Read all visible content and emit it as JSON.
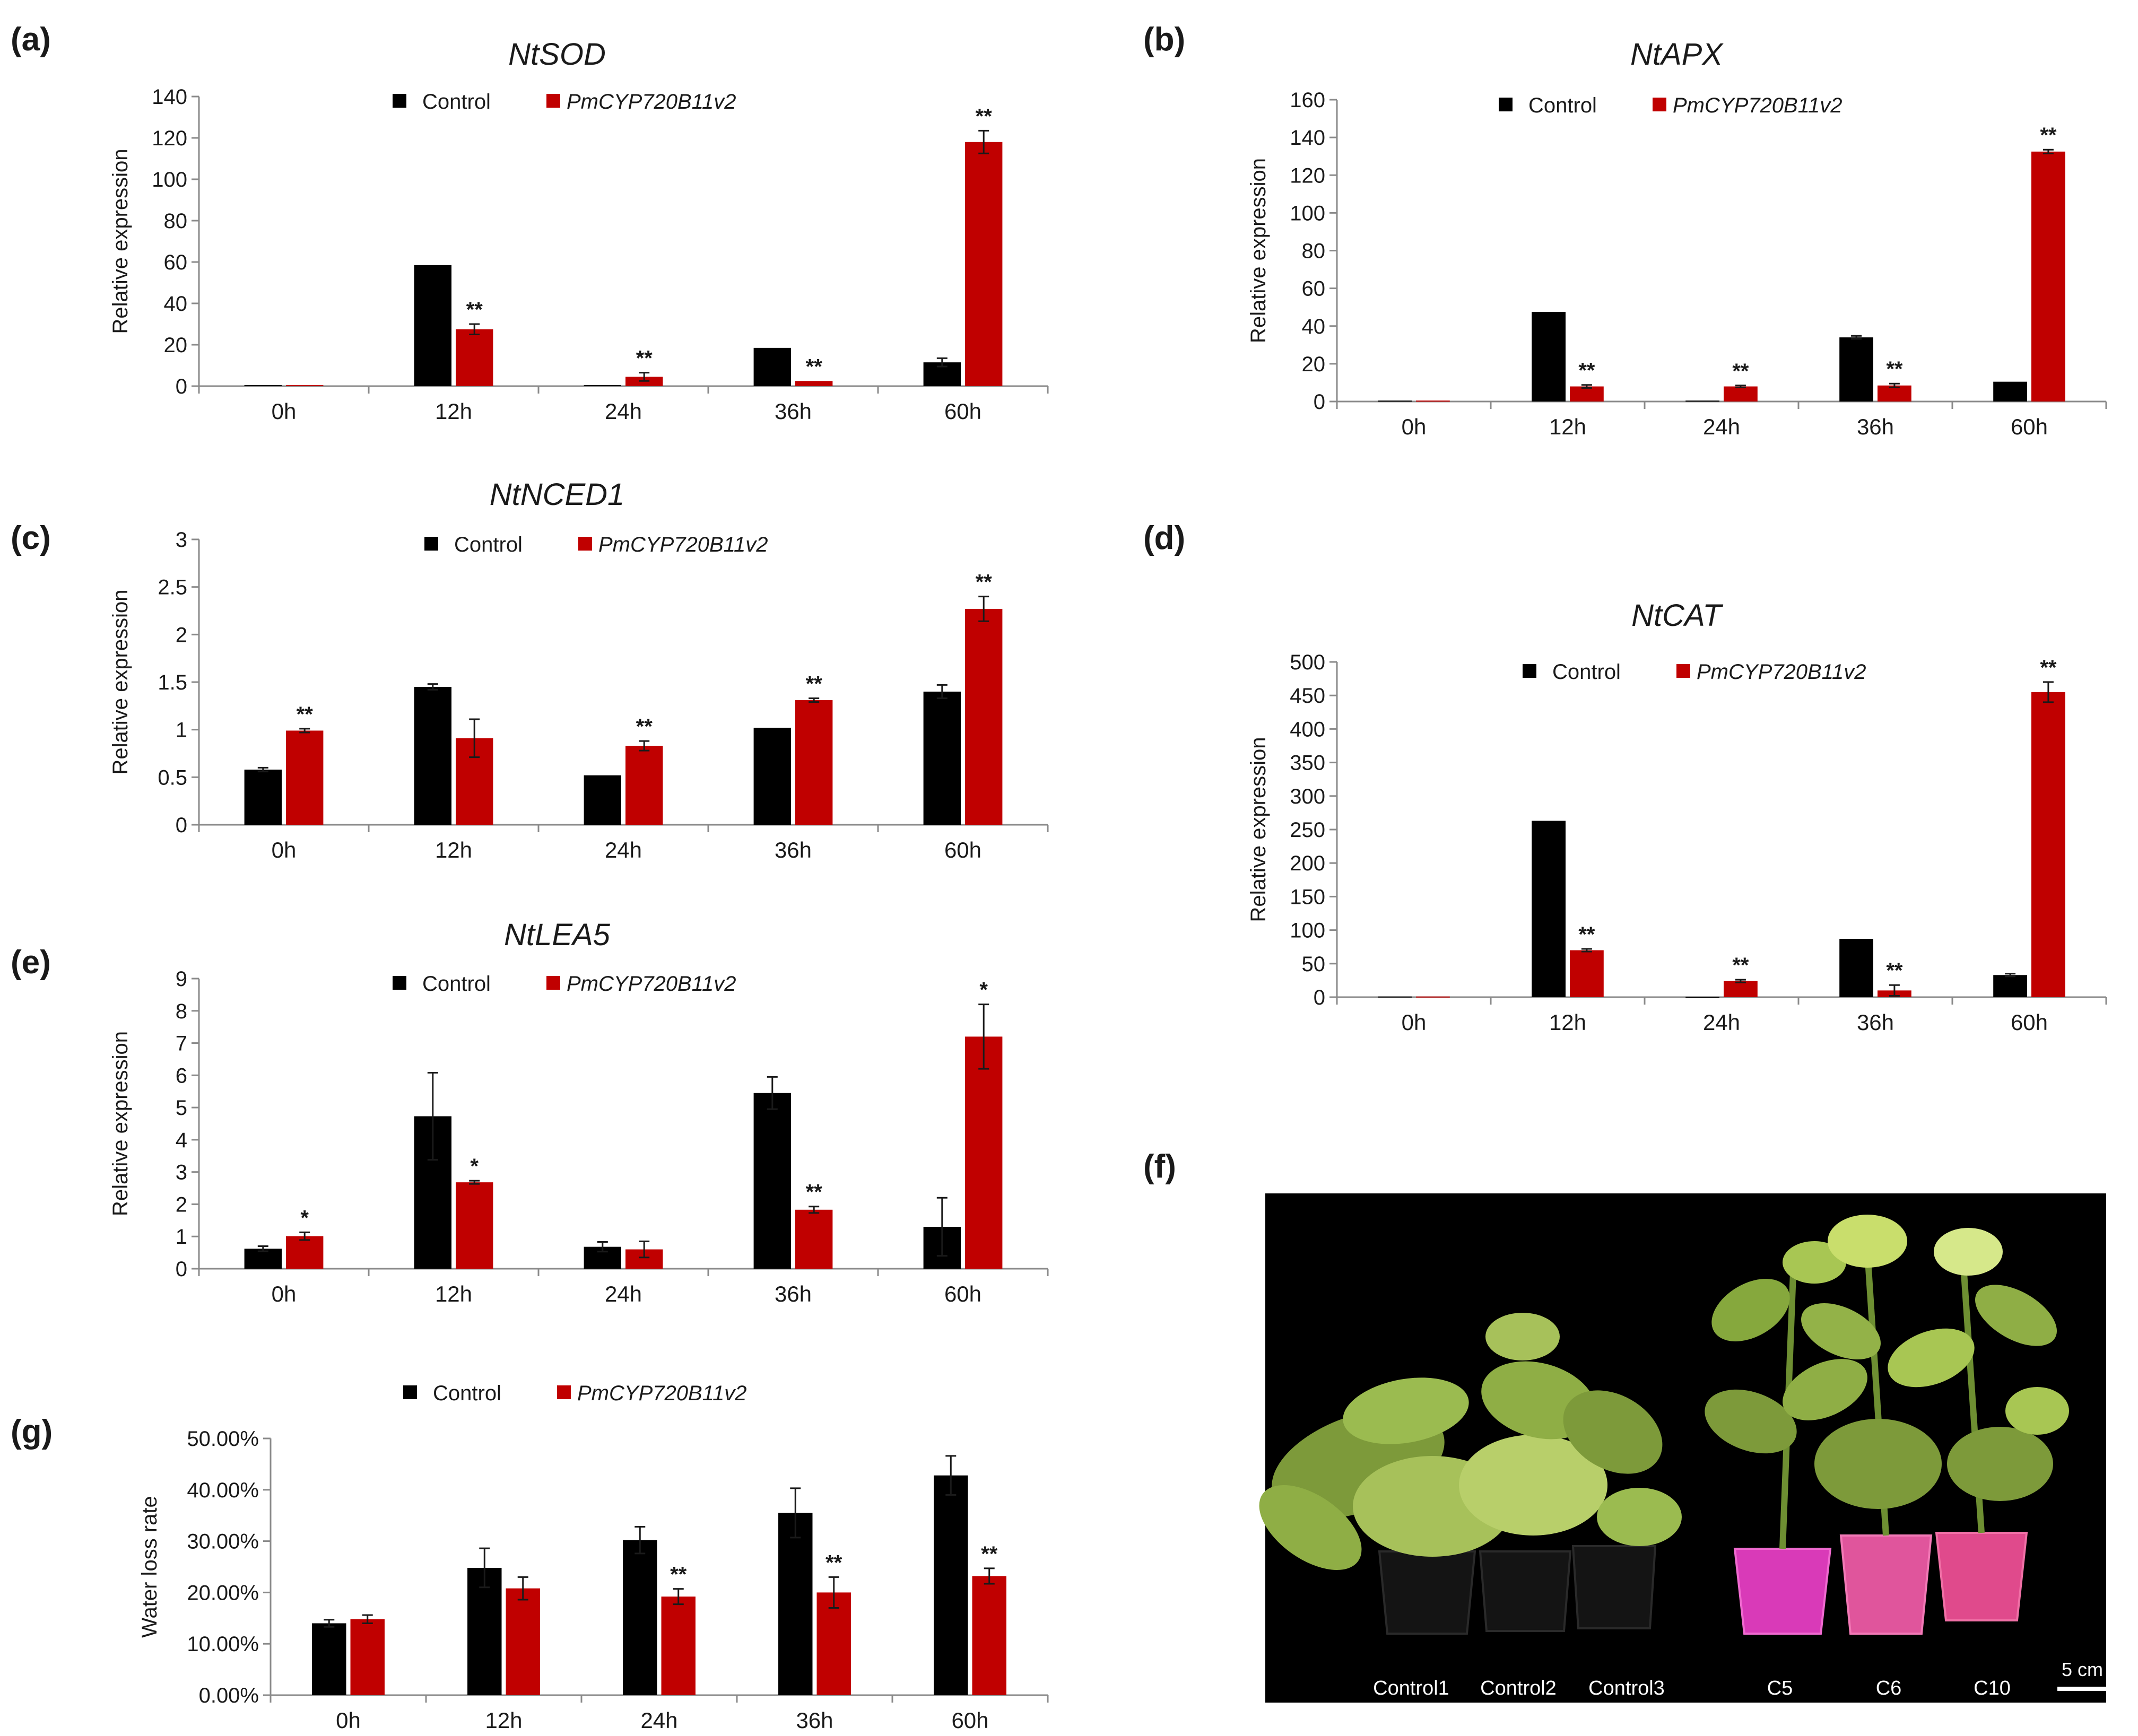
{
  "colors": {
    "control": "#000000",
    "transgenic": "#c00000",
    "axis": "#8a8a8a",
    "photo_bg": "#000000"
  },
  "legend": {
    "control": "Control",
    "transgenic": "PmCYP720B11v2"
  },
  "panel_letters": {
    "a": "(a)",
    "b": "(b)",
    "c": "(c)",
    "d": "(d)",
    "e": "(e)",
    "f": "(f)",
    "g": "(g)"
  },
  "chart_data": [
    {
      "id": "a",
      "type": "bar",
      "title": "NtSOD",
      "ylabel": "Relative expression",
      "xlabel": "",
      "categories": [
        "0h",
        "12h",
        "24h",
        "36h",
        "60h"
      ],
      "ylim": [
        0,
        140
      ],
      "yticks": [
        "0",
        "20",
        "40",
        "60",
        "80",
        "100",
        "120",
        "140"
      ],
      "series": [
        {
          "name": "Control",
          "values": [
            0.5,
            58.5,
            0.5,
            18.5,
            11.5
          ],
          "errors": [
            0,
            0,
            0,
            0,
            2
          ]
        },
        {
          "name": "PmCYP720B11v2",
          "values": [
            0.5,
            27.5,
            4.5,
            2.5,
            118
          ],
          "errors": [
            0,
            2.5,
            2,
            0,
            5.5
          ]
        }
      ],
      "significance": [
        "",
        "**",
        "**",
        "**",
        "**"
      ]
    },
    {
      "id": "b",
      "type": "bar",
      "title": "NtAPX",
      "ylabel": "Relative expression",
      "xlabel": "",
      "categories": [
        "0h",
        "12h",
        "24h",
        "36h",
        "60h"
      ],
      "ylim": [
        0,
        160
      ],
      "yticks": [
        "0",
        "20",
        "40",
        "60",
        "80",
        "100",
        "120",
        "140",
        "160"
      ],
      "series": [
        {
          "name": "Control",
          "values": [
            0.5,
            47.5,
            0.5,
            34,
            10.5
          ],
          "errors": [
            0,
            0,
            0,
            0.8,
            0
          ]
        },
        {
          "name": "PmCYP720B11v2",
          "values": [
            0.5,
            8,
            8,
            8.5,
            132.5
          ],
          "errors": [
            0,
            0.8,
            0.5,
            1,
            1
          ]
        }
      ],
      "significance": [
        "",
        "**",
        "**",
        "**",
        "**"
      ]
    },
    {
      "id": "c",
      "type": "bar",
      "title": "NtNCED1",
      "ylabel": "Relative expression",
      "xlabel": "",
      "categories": [
        "0h",
        "12h",
        "24h",
        "36h",
        "60h"
      ],
      "ylim": [
        0,
        3
      ],
      "yticks": [
        "0",
        "0.5",
        "1",
        "1.5",
        "2",
        "2.5",
        "3"
      ],
      "series": [
        {
          "name": "Control",
          "values": [
            0.58,
            1.45,
            0.52,
            1.02,
            1.4
          ],
          "errors": [
            0.02,
            0.03,
            0,
            0,
            0.07
          ]
        },
        {
          "name": "PmCYP720B11v2",
          "values": [
            0.99,
            0.91,
            0.83,
            1.31,
            2.27
          ],
          "errors": [
            0.02,
            0.2,
            0.05,
            0.02,
            0.13
          ]
        }
      ],
      "significance": [
        "**",
        "",
        "**",
        "**",
        "**"
      ]
    },
    {
      "id": "d",
      "type": "bar",
      "title": "NtCAT",
      "ylabel": "Relative expression",
      "xlabel": "",
      "categories": [
        "0h",
        "12h",
        "24h",
        "36h",
        "60h"
      ],
      "ylim": [
        0,
        500
      ],
      "yticks": [
        "0",
        "50",
        "100",
        "150",
        "200",
        "250",
        "300",
        "350",
        "400",
        "450",
        "500"
      ],
      "series": [
        {
          "name": "Control",
          "values": [
            1,
            263,
            0.5,
            87,
            33
          ],
          "errors": [
            0,
            0,
            0,
            0,
            2
          ]
        },
        {
          "name": "PmCYP720B11v2",
          "values": [
            1,
            70,
            24,
            10,
            455
          ],
          "errors": [
            0,
            2,
            2,
            8,
            15
          ]
        }
      ],
      "significance": [
        "",
        "**",
        "**",
        "**",
        "**"
      ]
    },
    {
      "id": "e",
      "type": "bar",
      "title": "NtLEA5",
      "ylabel": "Relative expression",
      "xlabel": "",
      "categories": [
        "0h",
        "12h",
        "24h",
        "36h",
        "60h"
      ],
      "ylim": [
        0,
        9
      ],
      "yticks": [
        "0",
        "1",
        "2",
        "3",
        "4",
        "5",
        "6",
        "7",
        "8",
        "9"
      ],
      "series": [
        {
          "name": "Control",
          "values": [
            0.62,
            4.73,
            0.68,
            5.45,
            1.3
          ],
          "errors": [
            0.08,
            1.35,
            0.15,
            0.5,
            0.9
          ]
        },
        {
          "name": "PmCYP720B11v2",
          "values": [
            1.01,
            2.68,
            0.6,
            1.83,
            7.2
          ],
          "errors": [
            0.12,
            0.05,
            0.25,
            0.1,
            1
          ]
        }
      ],
      "significance": [
        "*",
        "*",
        "",
        "**",
        "*"
      ]
    },
    {
      "id": "g",
      "type": "bar",
      "title": "",
      "ylabel": "Water loss rate",
      "xlabel": "",
      "categories": [
        "0h",
        "12h",
        "24h",
        "36h",
        "60h"
      ],
      "ylim": [
        0,
        0.5
      ],
      "yticks": [
        "0.00%",
        "10.00%",
        "20.00%",
        "30.00%",
        "40.00%",
        "50.00%"
      ],
      "series": [
        {
          "name": "Control",
          "values": [
            0.14,
            0.248,
            0.302,
            0.355,
            0.428
          ],
          "errors": [
            0.007,
            0.038,
            0.026,
            0.048,
            0.038
          ]
        },
        {
          "name": "PmCYP720B11v2",
          "values": [
            0.148,
            0.208,
            0.192,
            0.2,
            0.232
          ],
          "errors": [
            0.008,
            0.022,
            0.015,
            0.03,
            0.015
          ]
        }
      ],
      "significance": [
        "",
        "",
        "**",
        "**",
        "**"
      ]
    }
  ],
  "photo": {
    "plant_labels": [
      "Control1",
      "Control2",
      "Control3",
      "C5",
      "C6",
      "C10"
    ],
    "scale_bar_label": "5 cm"
  }
}
